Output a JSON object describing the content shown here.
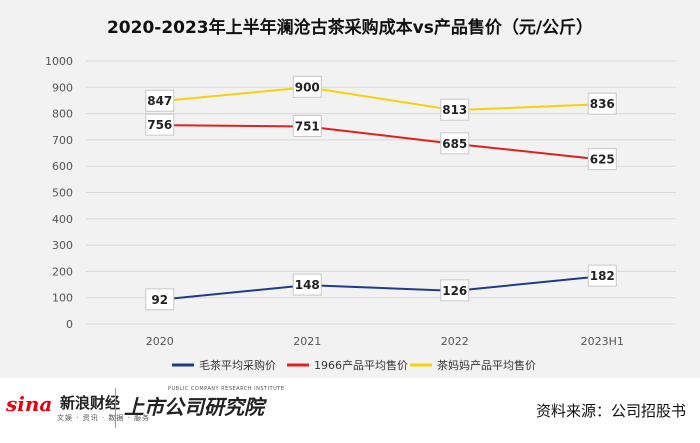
{
  "chart_data": {
    "type": "line",
    "title": "2020-2023年上半年澜沧古茶采购成本vs产品售价（元/公斤）",
    "categories": [
      "2020",
      "2021",
      "2022",
      "2023H1"
    ],
    "y_ticks": [
      "0",
      "100",
      "200",
      "300",
      "400",
      "500",
      "600",
      "700",
      "800",
      "900",
      "1000"
    ],
    "ylim": [
      0,
      1000
    ],
    "grid": true,
    "legend_position": "bottom",
    "series": [
      {
        "name": "毛茶平均采购价",
        "color": "#1f3c88",
        "values": [
          92,
          148,
          126,
          182
        ],
        "labels": [
          "92",
          "148",
          "126",
          "182"
        ]
      },
      {
        "name": "1966产品平均售价",
        "color": "#e02020",
        "values": [
          756,
          751,
          685,
          625
        ],
        "labels": [
          "756",
          "751",
          "685",
          "625"
        ]
      },
      {
        "name": "茶妈妈产品平均售价",
        "color": "#f5d20a",
        "values": [
          847,
          900,
          813,
          836
        ],
        "labels": [
          "847",
          "900",
          "813",
          "836"
        ]
      }
    ]
  },
  "footer": {
    "sina_logo": "sina",
    "sina_name": "新浪财经",
    "sina_sub": "文娱 · 资讯 · 数据 · 服务",
    "institute_name": "上市公司研究院",
    "institute_en": "PUBLIC COMPANY RESEARCH INSTITUTE",
    "source": "资料来源：公司招股书"
  }
}
